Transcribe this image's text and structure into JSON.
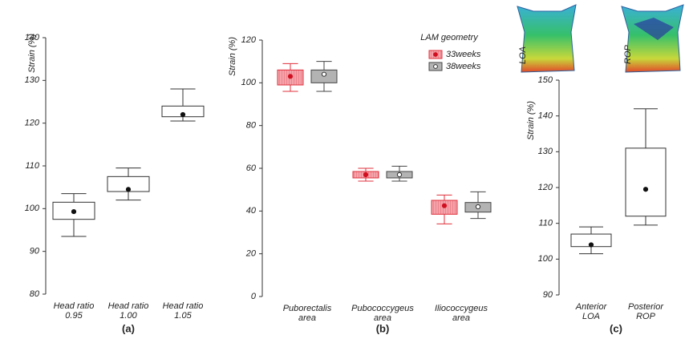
{
  "chart_data": [
    {
      "type": "box",
      "y_label": "Strain (%)",
      "panel_label": "(a)",
      "categories": [
        [
          "Head ratio",
          "0.95"
        ],
        [
          "Head ratio",
          "1.00"
        ],
        [
          "Head ratio",
          "1.05"
        ]
      ],
      "ylim": [
        80,
        140
      ],
      "yticks": [
        80,
        90,
        100,
        110,
        120,
        130,
        140
      ],
      "series": [
        {
          "color": "#333333",
          "fill": "#ffffff",
          "mean_color": "#111111",
          "boxes": [
            {
              "whisker_low": 93.5,
              "q1": 97.5,
              "q3": 101.5,
              "whisker_high": 103.5,
              "mean": 99.3
            },
            {
              "whisker_low": 102,
              "q1": 104,
              "q3": 107.5,
              "whisker_high": 109.5,
              "mean": 104.5
            },
            {
              "whisker_low": 120.5,
              "q1": 121.5,
              "q3": 124,
              "whisker_high": 128,
              "mean": 122
            }
          ]
        }
      ]
    },
    {
      "type": "box",
      "y_label": "Strain (%)",
      "panel_label": "(b)",
      "legend_title": "LAM geometry",
      "categories": [
        [
          "Puborectalis",
          "area"
        ],
        [
          "Pubococcygeus",
          "area"
        ],
        [
          "Iliococcygeus",
          "area"
        ]
      ],
      "ylim": [
        0,
        120
      ],
      "yticks": [
        0,
        20,
        40,
        60,
        80,
        100,
        120
      ],
      "series": [
        {
          "name": "33weeks",
          "color": "#e0303c",
          "fill": "#f5a3aa",
          "mean_color": "#d01020",
          "boxes": [
            {
              "whisker_low": 96,
              "q1": 99,
              "q3": 106,
              "whisker_high": 109,
              "mean": 103
            },
            {
              "whisker_low": 54,
              "q1": 55.5,
              "q3": 58.5,
              "whisker_high": 60,
              "mean": 57
            },
            {
              "whisker_low": 34,
              "q1": 38.5,
              "q3": 45,
              "whisker_high": 47.5,
              "mean": 42.5
            }
          ]
        },
        {
          "name": "38weeks",
          "color": "#444444",
          "fill": "#b3b3b3",
          "mean_color": "#ffffff",
          "boxes": [
            {
              "whisker_low": 96,
              "q1": 100,
              "q3": 106,
              "whisker_high": 110,
              "mean": 104
            },
            {
              "whisker_low": 54,
              "q1": 55.5,
              "q3": 58.5,
              "whisker_high": 61,
              "mean": 57
            },
            {
              "whisker_low": 36.5,
              "q1": 39.5,
              "q3": 44,
              "whisker_high": 49,
              "mean": 42
            }
          ]
        }
      ]
    },
    {
      "type": "box",
      "y_label": "Strain (%)",
      "panel_label": "(c)",
      "image_labels": [
        "LOA",
        "ROP"
      ],
      "categories": [
        [
          "Anterior",
          "LOA"
        ],
        [
          "Posterior",
          "ROP"
        ]
      ],
      "ylim": [
        90,
        150
      ],
      "yticks": [
        90,
        100,
        110,
        120,
        130,
        140,
        150
      ],
      "series": [
        {
          "color": "#333333",
          "fill": "#ffffff",
          "mean_color": "#111111",
          "boxes": [
            {
              "whisker_low": 101.5,
              "q1": 103.5,
              "q3": 107,
              "whisker_high": 109,
              "mean": 104
            },
            {
              "whisker_low": 109.5,
              "q1": 112,
              "q3": 131,
              "whisker_high": 142,
              "mean": 119.5
            }
          ]
        }
      ]
    }
  ]
}
